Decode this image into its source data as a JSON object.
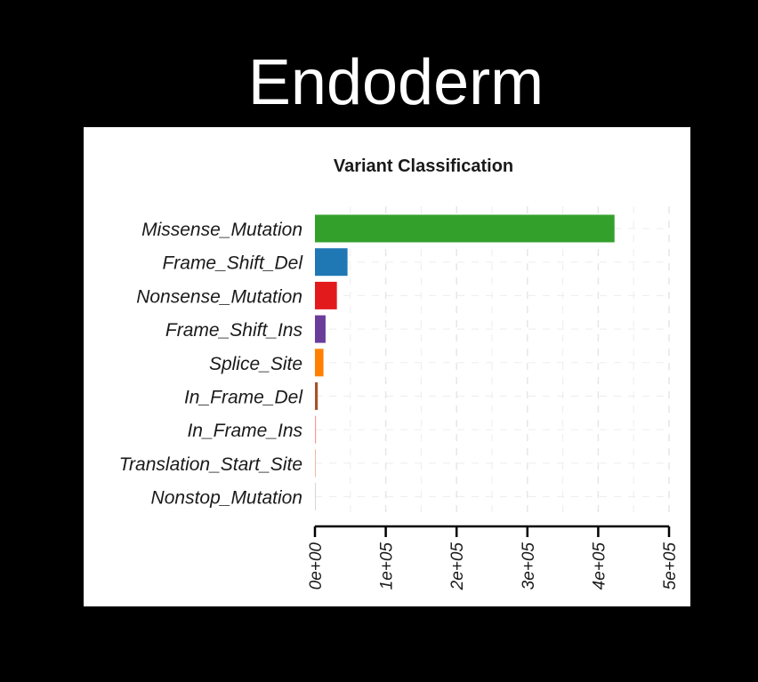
{
  "slide": {
    "title": "Endoderm"
  },
  "chart_data": {
    "type": "bar",
    "orientation": "horizontal",
    "title": "Variant Classification",
    "xlabel": "",
    "ylabel": "",
    "xlim": [
      0,
      500000
    ],
    "x_ticks": [
      {
        "value": 0,
        "label": "0e+00"
      },
      {
        "value": 100000,
        "label": "1e+05"
      },
      {
        "value": 200000,
        "label": "2e+05"
      },
      {
        "value": 300000,
        "label": "3e+05"
      },
      {
        "value": 400000,
        "label": "4e+05"
      },
      {
        "value": 500000,
        "label": "5e+05"
      }
    ],
    "grid": true,
    "categories": [
      "Missense_Mutation",
      "Frame_Shift_Del",
      "Nonsense_Mutation",
      "Frame_Shift_Ins",
      "Splice_Site",
      "In_Frame_Del",
      "In_Frame_Ins",
      "Translation_Start_Site",
      "Nonstop_Mutation"
    ],
    "values": [
      423000,
      46000,
      31000,
      15000,
      12000,
      4000,
      1500,
      800,
      300
    ],
    "colors": [
      "#33a02c",
      "#1f78b4",
      "#e31a1c",
      "#6a3d9a",
      "#ff7f00",
      "#a6542a",
      "#fb9a99",
      "#f4a582",
      "#cccccc"
    ]
  }
}
